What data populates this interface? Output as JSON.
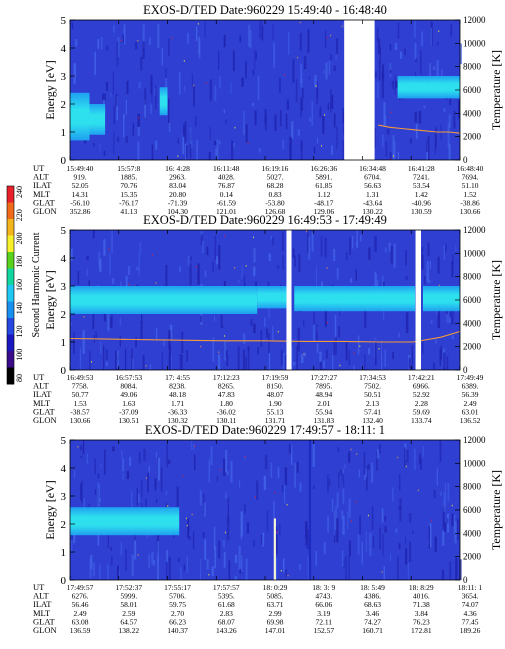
{
  "colorbar": {
    "label": "Second Harmonic Current",
    "ticks": [
      "240",
      "220",
      "200",
      "180",
      "160",
      "140",
      "120",
      "100",
      "80"
    ],
    "colors": [
      "#e8202a",
      "#f06a1a",
      "#f4b41c",
      "#f6f02a",
      "#58d21c",
      "#11d6a0",
      "#1ec8f2",
      "#1890f0",
      "#2448e0",
      "#1a18c0",
      "#3a0c8a",
      "#000000"
    ]
  },
  "colors": {
    "background": "#2e3fd2",
    "noise_dark": "#2024b0",
    "noise_light": "#4160e6",
    "band_outer": "#1ea4f2",
    "band_inner": "#2ee8f0",
    "temperature_line": "#f29a3a",
    "gap": "#ffffff"
  },
  "row_labels": [
    "UT",
    "ALT",
    "ILAT",
    "MLT",
    "GLAT",
    "GLON"
  ],
  "chart_data": [
    {
      "type": "heatmap",
      "title": "EXOS-D/TED   Date:960229   15:49:40 - 16:48:40",
      "ylabel": "Energy [eV]",
      "y2label": "Temperature [K]",
      "yticks": [
        "0",
        "1",
        "2",
        "3",
        "4",
        "5"
      ],
      "y2ticks": [
        "0",
        "2000",
        "4000",
        "6000",
        "8000",
        "10000",
        "12000"
      ],
      "ylim": [
        0,
        5
      ],
      "y2lim": [
        0,
        12000
      ],
      "band_segments": [
        {
          "t0": 0.0,
          "t1": 0.05,
          "e0": 0.7,
          "e1": 2.4
        },
        {
          "t0": 0.05,
          "t1": 0.09,
          "e0": 0.9,
          "e1": 2.0
        },
        {
          "t0": 0.23,
          "t1": 0.25,
          "e0": 1.6,
          "e1": 2.6
        },
        {
          "t0": 0.84,
          "t1": 1.0,
          "e0": 2.2,
          "e1": 3.0
        }
      ],
      "gaps": [
        {
          "t0": 0.703,
          "t1": 0.781
        }
      ],
      "temperature": [
        {
          "t": 0.79,
          "k": 3000
        },
        {
          "t": 0.82,
          "k": 2800
        },
        {
          "t": 0.85,
          "k": 2700
        },
        {
          "t": 0.88,
          "k": 2600
        },
        {
          "t": 0.91,
          "k": 2500
        },
        {
          "t": 0.94,
          "k": 2400
        },
        {
          "t": 0.97,
          "k": 2400
        },
        {
          "t": 1.0,
          "k": 2300
        }
      ],
      "orbit_table": [
        [
          "15:49:40",
          "15:57:8",
          "16: 4:28",
          "16:11:48",
          "16:19:16",
          "16:26:36",
          "16:34:48",
          "16:41:28",
          "16:48:40"
        ],
        [
          "919.",
          "1885.",
          "2963.",
          "4028.",
          "5027.",
          "5891.",
          "6704.",
          "7241.",
          "7694."
        ],
        [
          "52.05",
          "70.76",
          "83.04",
          "76.87",
          "68.28",
          "61.85",
          "56.63",
          "53.54",
          "51.10"
        ],
        [
          "14.31",
          "15.35",
          "20.80",
          "0.14",
          "0.83",
          "1.12",
          "1.31",
          "1.42",
          "1.52"
        ],
        [
          "-56.10",
          "-76.17",
          "-71.39",
          "-61.59",
          "-53.80",
          "-48.17",
          "-43.64",
          "-40.96",
          "-38.86"
        ],
        [
          "352.86",
          "41.13",
          "104.30",
          "121.01",
          "126.68",
          "129.06",
          "130.22",
          "130.59",
          "130.66"
        ]
      ]
    },
    {
      "type": "heatmap",
      "title": "EXOS-D/TED   Date:960229   16:49:53 - 17:49:49",
      "ylabel": "Energy [eV]",
      "y2label": "Temperature [K]",
      "yticks": [
        "0",
        "1",
        "2",
        "3",
        "4",
        "5"
      ],
      "y2ticks": [
        "0",
        "2000",
        "4000",
        "6000",
        "8000",
        "10000",
        "12000"
      ],
      "ylim": [
        0,
        5
      ],
      "y2lim": [
        0,
        12000
      ],
      "band_segments": [
        {
          "t0": 0.0,
          "t1": 0.48,
          "e0": 2.0,
          "e1": 3.0
        },
        {
          "t0": 0.48,
          "t1": 0.555,
          "e0": 2.2,
          "e1": 3.0
        },
        {
          "t0": 0.575,
          "t1": 0.885,
          "e0": 2.1,
          "e1": 3.0
        },
        {
          "t0": 0.905,
          "t1": 1.0,
          "e0": 2.1,
          "e1": 3.0
        }
      ],
      "gaps": [
        {
          "t0": 0.555,
          "t1": 0.568
        },
        {
          "t0": 0.886,
          "t1": 0.9
        }
      ],
      "temperature": [
        {
          "t": 0.0,
          "k": 2700
        },
        {
          "t": 0.1,
          "k": 2650
        },
        {
          "t": 0.2,
          "k": 2600
        },
        {
          "t": 0.3,
          "k": 2550
        },
        {
          "t": 0.4,
          "k": 2500
        },
        {
          "t": 0.5,
          "k": 2500
        },
        {
          "t": 0.6,
          "k": 2450
        },
        {
          "t": 0.7,
          "k": 2450
        },
        {
          "t": 0.8,
          "k": 2400
        },
        {
          "t": 0.88,
          "k": 2400
        },
        {
          "t": 0.95,
          "k": 2800
        },
        {
          "t": 1.0,
          "k": 3300
        }
      ],
      "orbit_table": [
        [
          "16:49:53",
          "16:57:53",
          "17: 4:55",
          "17:12:23",
          "17:19:59",
          "17:27:27",
          "17:34:53",
          "17:42:21",
          "17:49:49"
        ],
        [
          "7758.",
          "8084.",
          "8238.",
          "8265.",
          "8150.",
          "7895.",
          "7502.",
          "6966.",
          "6389."
        ],
        [
          "50.77",
          "49.06",
          "48.18",
          "47.83",
          "48.07",
          "48.94",
          "50.51",
          "52.92",
          "56.39"
        ],
        [
          "1.53",
          "1.63",
          "1.71",
          "1.80",
          "1.90",
          "2.01",
          "2.13",
          "2.28",
          "2.49"
        ],
        [
          "-38.57",
          "-37.09",
          "-36.33",
          "-36.02",
          "55.13",
          "55.94",
          "57.41",
          "59.69",
          "63.01"
        ],
        [
          "130.66",
          "130.51",
          "130.32",
          "130.11",
          "131.71",
          "131.83",
          "132.40",
          "133.74",
          "136.52"
        ]
      ]
    },
    {
      "type": "heatmap",
      "title": "EXOS-D/TED   Date:960229   17:49:57 - 18:11: 1",
      "ylabel": "Energy [eV]",
      "y2label": "Temperature [K]",
      "yticks": [
        "0",
        "1",
        "2",
        "3",
        "4",
        "5"
      ],
      "y2ticks": [
        "0",
        "2000",
        "4000",
        "6000",
        "8000",
        "10000",
        "12000"
      ],
      "ylim": [
        0,
        5
      ],
      "y2lim": [
        0,
        12000
      ],
      "band_segments": [
        {
          "t0": 0.0,
          "t1": 0.28,
          "e0": 1.6,
          "e1": 2.6
        }
      ],
      "gaps": [],
      "spikes": [
        {
          "t": 0.525,
          "e0": 0.0,
          "e1": 2.2
        },
        {
          "t": 0.615,
          "e0": 0.0,
          "e1": 5.0
        }
      ],
      "temperature": [],
      "orbit_table": [
        [
          "17:49:57",
          "17:52:37",
          "17:55:17",
          "17:57:57",
          "18: 0:29",
          "18: 3: 9",
          "18: 5:49",
          "18: 8:29",
          "18:11: 1"
        ],
        [
          "6276.",
          "5999.",
          "5706.",
          "5395.",
          "5085.",
          "4743.",
          "4386.",
          "4016.",
          "3654."
        ],
        [
          "56.46",
          "58.01",
          "59.75",
          "61.68",
          "63.71",
          "66.06",
          "68.63",
          "71.38",
          "74.07"
        ],
        [
          "2.49",
          "2.59",
          "2.70",
          "2.83",
          "2.99",
          "3.19",
          "3.46",
          "3.84",
          "4.36"
        ],
        [
          "63.08",
          "64.57",
          "66.23",
          "68.07",
          "69.98",
          "72.11",
          "74.27",
          "76.23",
          "77.45"
        ],
        [
          "136.59",
          "138.22",
          "140.37",
          "143.26",
          "147.01",
          "152.57",
          "160.71",
          "172.81",
          "189.26"
        ]
      ]
    }
  ]
}
